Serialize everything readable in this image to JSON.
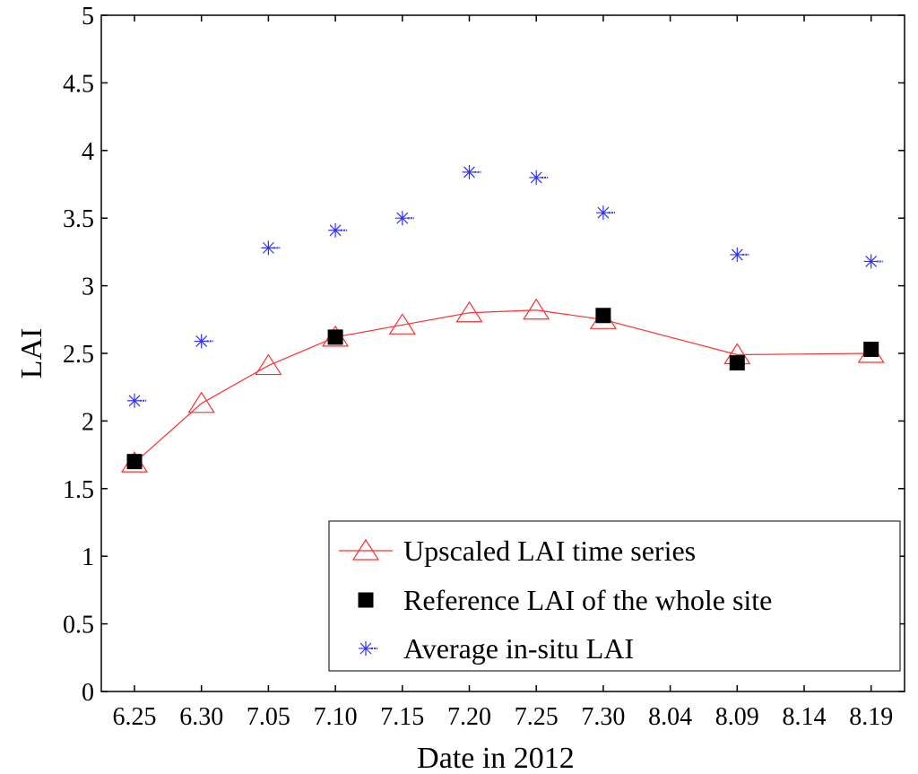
{
  "chart_data": {
    "type": "line",
    "title": "",
    "xlabel": "Date in 2012",
    "ylabel": "LAI",
    "categories": [
      "6.25",
      "6.30",
      "7.05",
      "7.10",
      "7.15",
      "7.20",
      "7.25",
      "7.30",
      "8.04",
      "8.09",
      "8.14",
      "8.19"
    ],
    "ylim": [
      0,
      5
    ],
    "yticks": [
      "0",
      "0.5",
      "1",
      "1.5",
      "2",
      "2.5",
      "3",
      "3.5",
      "4",
      "4.5",
      "5"
    ],
    "legend_position": "bottom-right",
    "series": [
      {
        "name": "Upscaled LAI time series",
        "style": "line-triangle",
        "color": "#ff3030",
        "points": [
          {
            "x": "6.25",
            "y": 1.69
          },
          {
            "x": "6.30",
            "y": 2.13
          },
          {
            "x": "7.05",
            "y": 2.41
          },
          {
            "x": "7.10",
            "y": 2.62
          },
          {
            "x": "7.15",
            "y": 2.71
          },
          {
            "x": "7.20",
            "y": 2.8
          },
          {
            "x": "7.25",
            "y": 2.82
          },
          {
            "x": "7.30",
            "y": 2.75
          },
          {
            "x": "8.09",
            "y": 2.49
          },
          {
            "x": "8.19",
            "y": 2.5
          }
        ]
      },
      {
        "name": "Reference LAI of the whole site",
        "style": "square",
        "color": "#000000",
        "points": [
          {
            "x": "6.25",
            "y": 1.7
          },
          {
            "x": "7.10",
            "y": 2.62
          },
          {
            "x": "7.30",
            "y": 2.78
          },
          {
            "x": "8.09",
            "y": 2.43
          },
          {
            "x": "8.19",
            "y": 2.53
          }
        ]
      },
      {
        "name": "Average in-situ LAI",
        "style": "asterisk",
        "color": "#3030ff",
        "points": [
          {
            "x": "6.25",
            "y": 2.15
          },
          {
            "x": "6.30",
            "y": 2.59
          },
          {
            "x": "7.05",
            "y": 3.28
          },
          {
            "x": "7.10",
            "y": 3.41
          },
          {
            "x": "7.15",
            "y": 3.5
          },
          {
            "x": "7.20",
            "y": 3.84
          },
          {
            "x": "7.25",
            "y": 3.8
          },
          {
            "x": "7.30",
            "y": 3.54
          },
          {
            "x": "8.09",
            "y": 3.23
          },
          {
            "x": "8.19",
            "y": 3.18
          }
        ]
      }
    ]
  }
}
